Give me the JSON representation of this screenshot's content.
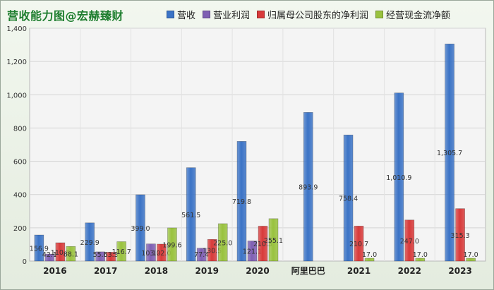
{
  "title": "营收能力图@宏赫臻财",
  "chart_data": {
    "type": "bar",
    "categories": [
      "2016",
      "2017",
      "2018",
      "2019",
      "2020",
      "阿里巴巴",
      "2021",
      "2022",
      "2023"
    ],
    "series": [
      {
        "name": "营收",
        "color": "#3b73c6",
        "values": [
          156.9,
          229.9,
          399.0,
          561.5,
          719.8,
          893.9,
          758.4,
          1010.9,
          1305.7
        ],
        "labels": [
          "156.9",
          "229.9",
          "399.0",
          "561.5",
          "719.8",
          "893.9",
          "758.4",
          "1,010.9",
          "1,305.7"
        ]
      },
      {
        "name": "营业利润",
        "color": "#7f5fb3",
        "values": [
          42.1,
          55.6,
          103.2,
          77.4,
          121.1,
          null,
          null,
          null,
          null
        ],
        "labels": [
          "42.1",
          "55.6",
          "103.2",
          "77.4",
          "121.1",
          "",
          "",
          "",
          ""
        ]
      },
      {
        "name": "归属母公司股东的净利润",
        "color": "#d83a3a",
        "values": [
          110.3,
          53.3,
          102.0,
          130.5,
          210.3,
          null,
          210.7,
          247.0,
          315.3
        ],
        "labels": [
          "110.3",
          "53.3",
          "102.0",
          "130.5",
          "210.3",
          "",
          "210.7",
          "247.0",
          "315.3"
        ]
      },
      {
        "name": "经营现金流净额",
        "color": "#99c23e",
        "values": [
          88.1,
          116.7,
          199.6,
          225.0,
          255.1,
          null,
          17.0,
          17.0,
          17.0
        ],
        "labels": [
          "88.1",
          "116.7",
          "199.6",
          "225.0",
          "255.1",
          "",
          "17.0",
          "17.0",
          "17.0"
        ]
      }
    ],
    "ylim": [
      0,
      1400
    ],
    "yticks": [
      "0",
      "200",
      "400",
      "600",
      "800",
      "1,000",
      "1,200",
      "1,400"
    ],
    "grid": true,
    "legend": "top"
  }
}
